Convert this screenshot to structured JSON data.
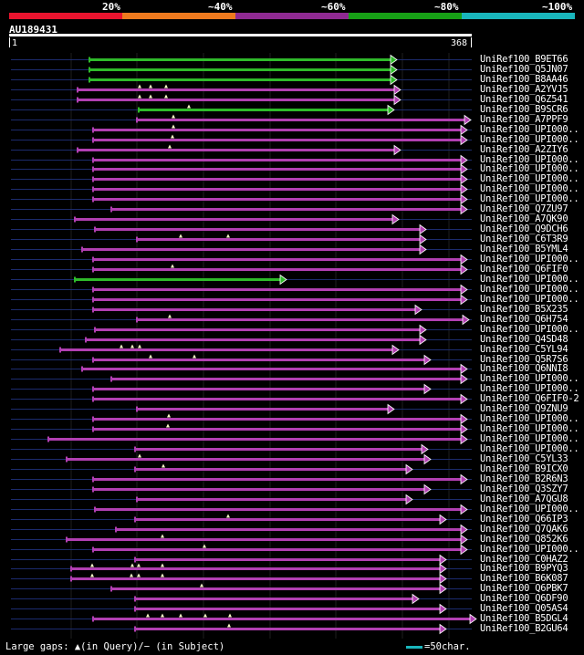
{
  "header": {
    "scale_labels": [
      "20%",
      "~40%",
      "~60%",
      "~80%",
      "~100%"
    ],
    "scale_colors": [
      "#e8142e",
      "#ee7a1e",
      "#8f2a92",
      "#17a016",
      "#19b6bc"
    ],
    "query_id": "AU189431",
    "ruler_start": "1",
    "ruler_end": "368"
  },
  "colors": {
    "magenta": "#b23fb2",
    "green": "#2fba2a",
    "navy": "#1c2b6e"
  },
  "hits": [
    {
      "name": "UniRef100_B9ET66",
      "color": "green",
      "start": 98,
      "end": 428,
      "marks": []
    },
    {
      "name": "UniRef100_Q5JN07",
      "color": "green",
      "start": 98,
      "end": 428,
      "marks": []
    },
    {
      "name": "UniRef100_B8AA46",
      "color": "green",
      "start": 98,
      "end": 428,
      "marks": []
    },
    {
      "name": "UniRef100_A2YVJ5",
      "color": "magenta",
      "start": 85,
      "end": 432,
      "marks": [
        153,
        165,
        182
      ]
    },
    {
      "name": "UniRef100_Q6Z541",
      "color": "magenta",
      "start": 85,
      "end": 432,
      "marks": [
        153,
        165,
        182
      ]
    },
    {
      "name": "UniRef100_B9SCR6",
      "color": "green",
      "start": 152,
      "end": 425,
      "marks": [
        207
      ]
    },
    {
      "name": "UniRef100_A7PPF9",
      "color": "magenta",
      "start": 150,
      "end": 509,
      "marks": [
        190
      ]
    },
    {
      "name": "UniRef100_UPI000..",
      "color": "magenta",
      "start": 102,
      "end": 505,
      "marks": [
        190
      ]
    },
    {
      "name": "UniRef100_UPI000..",
      "color": "magenta",
      "start": 102,
      "end": 505,
      "marks": [
        189
      ]
    },
    {
      "name": "UniRef100_A2ZIY6",
      "color": "magenta",
      "start": 85,
      "end": 432,
      "marks": [
        186
      ]
    },
    {
      "name": "UniRef100_UPI000..",
      "color": "magenta",
      "start": 102,
      "end": 505,
      "marks": []
    },
    {
      "name": "UniRef100_UPI000..",
      "color": "magenta",
      "start": 102,
      "end": 505,
      "marks": []
    },
    {
      "name": "UniRef100_UPI000..",
      "color": "magenta",
      "start": 102,
      "end": 505,
      "marks": []
    },
    {
      "name": "UniRef100_UPI000..",
      "color": "magenta",
      "start": 102,
      "end": 505,
      "marks": []
    },
    {
      "name": "UniRef100_UPI000..",
      "color": "magenta",
      "start": 102,
      "end": 505,
      "marks": []
    },
    {
      "name": "UniRef100_Q7ZU97",
      "color": "magenta",
      "start": 122,
      "end": 505,
      "marks": []
    },
    {
      "name": "UniRef100_A7QK90",
      "color": "magenta",
      "start": 82,
      "end": 430,
      "marks": []
    },
    {
      "name": "UniRef100_Q9DCH6",
      "color": "magenta",
      "start": 104,
      "end": 460,
      "marks": []
    },
    {
      "name": "UniRef100_C6T3R9",
      "color": "magenta",
      "start": 150,
      "end": 460,
      "marks": [
        198,
        250
      ]
    },
    {
      "name": "UniRef100_B5YML4",
      "color": "magenta",
      "start": 90,
      "end": 460,
      "marks": []
    },
    {
      "name": "UniRef100_UPI000..",
      "color": "magenta",
      "start": 102,
      "end": 505,
      "marks": []
    },
    {
      "name": "UniRef100_Q6FIF0",
      "color": "magenta",
      "start": 102,
      "end": 505,
      "marks": [
        189
      ]
    },
    {
      "name": "UniRef100_UPI000..",
      "color": "green",
      "start": 82,
      "end": 307,
      "marks": []
    },
    {
      "name": "UniRef100_UPI000..",
      "color": "magenta",
      "start": 102,
      "end": 505,
      "marks": []
    },
    {
      "name": "UniRef100_UPI000..",
      "color": "magenta",
      "start": 102,
      "end": 505,
      "marks": []
    },
    {
      "name": "UniRef100_B5X235",
      "color": "magenta",
      "start": 102,
      "end": 455,
      "marks": []
    },
    {
      "name": "UniRef100_Q6H754",
      "color": "magenta",
      "start": 150,
      "end": 507,
      "marks": [
        186
      ]
    },
    {
      "name": "UniRef100_UPI000..",
      "color": "magenta",
      "start": 104,
      "end": 460,
      "marks": []
    },
    {
      "name": "UniRef100_Q4SD48",
      "color": "magenta",
      "start": 94,
      "end": 460,
      "marks": []
    },
    {
      "name": "UniRef100_C5YL94",
      "color": "magenta",
      "start": 66,
      "end": 430,
      "marks": [
        133,
        145,
        153
      ]
    },
    {
      "name": "UniRef100_Q5R7S6",
      "color": "magenta",
      "start": 102,
      "end": 465,
      "marks": [
        165,
        213
      ]
    },
    {
      "name": "UniRef100_Q6NNI8",
      "color": "magenta",
      "start": 90,
      "end": 505,
      "marks": []
    },
    {
      "name": "UniRef100_UPI000..",
      "color": "magenta",
      "start": 122,
      "end": 505,
      "marks": []
    },
    {
      "name": "UniRef100_UPI000..",
      "color": "magenta",
      "start": 102,
      "end": 465,
      "marks": []
    },
    {
      "name": "UniRef100_Q6FIF0-2",
      "color": "magenta",
      "start": 102,
      "end": 505,
      "marks": []
    },
    {
      "name": "UniRef100_Q9ZNU9",
      "color": "magenta",
      "start": 150,
      "end": 425,
      "marks": []
    },
    {
      "name": "UniRef100_UPI000..",
      "color": "magenta",
      "start": 102,
      "end": 505,
      "marks": [
        185
      ]
    },
    {
      "name": "UniRef100_UPI000..",
      "color": "magenta",
      "start": 102,
      "end": 505,
      "marks": [
        184
      ]
    },
    {
      "name": "UniRef100_UPI000..",
      "color": "magenta",
      "start": 53,
      "end": 505,
      "marks": []
    },
    {
      "name": "UniRef100_UPI000..",
      "color": "magenta",
      "start": 148,
      "end": 462,
      "marks": []
    },
    {
      "name": "UniRef100_C5YL33",
      "color": "magenta",
      "start": 73,
      "end": 465,
      "marks": [
        153
      ]
    },
    {
      "name": "UniRef100_B9ICX0",
      "color": "magenta",
      "start": 148,
      "end": 445,
      "marks": [
        179
      ]
    },
    {
      "name": "UniRef100_B2R6N3",
      "color": "magenta",
      "start": 102,
      "end": 505,
      "marks": []
    },
    {
      "name": "UniRef100_Q3SZY7",
      "color": "magenta",
      "start": 102,
      "end": 465,
      "marks": []
    },
    {
      "name": "UniRef100_A7QGU8",
      "color": "magenta",
      "start": 150,
      "end": 445,
      "marks": []
    },
    {
      "name": "UniRef100_UPI000..",
      "color": "magenta",
      "start": 104,
      "end": 505,
      "marks": []
    },
    {
      "name": "UniRef100_Q66IP3",
      "color": "magenta",
      "start": 148,
      "end": 482,
      "marks": [
        250
      ]
    },
    {
      "name": "UniRef100_Q7QAK6",
      "color": "magenta",
      "start": 127,
      "end": 505,
      "marks": []
    },
    {
      "name": "UniRef100_Q852K6",
      "color": "magenta",
      "start": 73,
      "end": 505,
      "marks": [
        178
      ]
    },
    {
      "name": "UniRef100_UPI000..",
      "color": "magenta",
      "start": 102,
      "end": 505,
      "marks": [
        224
      ]
    },
    {
      "name": "UniRef100_C0HAZ2",
      "color": "magenta",
      "start": 148,
      "end": 482,
      "marks": []
    },
    {
      "name": "UniRef100_B9PYQ3",
      "color": "magenta",
      "start": 78,
      "end": 482,
      "marks": [
        101,
        145,
        152,
        178
      ]
    },
    {
      "name": "UniRef100_B6K087",
      "color": "magenta",
      "start": 78,
      "end": 482,
      "marks": [
        101,
        144,
        152,
        178
      ]
    },
    {
      "name": "UniRef100_Q6PBK7",
      "color": "magenta",
      "start": 122,
      "end": 482,
      "marks": [
        221
      ]
    },
    {
      "name": "UniRef100_Q6DF90",
      "color": "magenta",
      "start": 148,
      "end": 452,
      "marks": []
    },
    {
      "name": "UniRef100_Q05AS4",
      "color": "magenta",
      "start": 148,
      "end": 482,
      "marks": []
    },
    {
      "name": "UniRef100_B5DGL4",
      "color": "magenta",
      "start": 102,
      "end": 515,
      "marks": [
        162,
        178,
        198,
        225,
        252
      ]
    },
    {
      "name": "UniRef100_B2GU64",
      "color": "magenta",
      "start": 148,
      "end": 482,
      "marks": [
        251
      ]
    }
  ],
  "legend": {
    "gaps_text": "Large gaps: ▲(in Query)/− (in Subject)",
    "scale_text": "=50char.",
    "scale_color": "#19b6bc"
  }
}
